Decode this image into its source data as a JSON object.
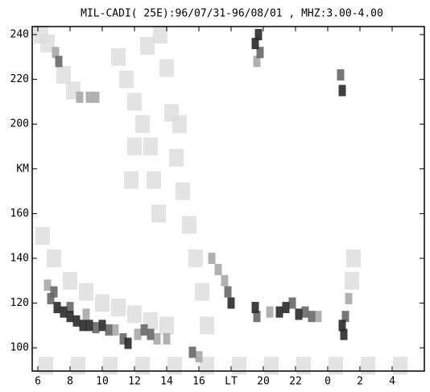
{
  "chart_data": {
    "type": "scatter",
    "title": "MIL-CADI( 25E):96/07/31-96/08/01 , MHZ:3.00-4.00",
    "xlim": [
      5.65,
      30
    ],
    "ylim": [
      89.6,
      243.6
    ],
    "xticks": [
      6,
      8,
      10,
      12,
      14,
      16,
      {
        "value": 18,
        "label": "LT"
      },
      20,
      22,
      {
        "value": 24,
        "label": "0"
      },
      {
        "value": 26,
        "label": "2"
      },
      {
        "value": 28,
        "label": "4"
      }
    ],
    "yticks": [
      100,
      120,
      140,
      160,
      {
        "value": 180,
        "label": "KM"
      },
      200,
      220,
      240
    ],
    "level_colors": [
      "#dcdcdc",
      "#a8a8a8",
      "#686868",
      "#2a2a2a"
    ],
    "x": [
      6.8,
      7.2,
      7.6,
      8,
      8.4,
      8.8,
      9.2,
      9.6,
      10,
      10.4,
      6.6,
      7,
      8,
      9,
      10.8,
      11.3,
      11.6,
      12.2,
      12.6,
      13,
      13.4,
      14,
      15.6,
      16,
      17.8,
      18,
      17.6,
      17.2,
      16.8,
      19.5,
      19.6,
      21,
      21.4,
      21.8,
      22.2,
      22.6,
      23,
      23.4,
      20.4,
      24.9,
      25,
      25.1,
      25.3,
      25.5,
      25.6,
      19.7,
      19.5,
      19.8,
      19.6,
      24.9,
      24.8,
      7.3,
      7.1,
      8.6,
      9.2,
      9.6,
      6.2,
      6.6,
      7.6,
      8.2,
      11,
      11.5,
      12,
      12.5,
      13,
      13.6,
      14,
      14.3,
      14.6,
      15,
      15.4,
      15.8,
      16.2,
      16.5,
      12,
      11.8,
      13.5,
      8,
      9,
      10,
      11,
      12,
      13,
      14,
      7,
      6.3,
      12.8,
      14.8,
      13.2,
      6.5,
      8.5,
      10.5,
      12.5,
      14.5,
      16.5,
      18.5,
      20.5,
      22.5,
      24.5,
      26.5,
      28.5
    ],
    "y": [
      122,
      118,
      116,
      114,
      112,
      110,
      110,
      109,
      110,
      108,
      128,
      125,
      118,
      115,
      108,
      104,
      102,
      106,
      108,
      106,
      104,
      104,
      98,
      96,
      125,
      120,
      130,
      135,
      140,
      118,
      114,
      116,
      118,
      120,
      115,
      116,
      114,
      114,
      116,
      110,
      106,
      114,
      122,
      130,
      140,
      240,
      236,
      232,
      228,
      215,
      222,
      228,
      232,
      212,
      212,
      212,
      240,
      236,
      222,
      215,
      230,
      220,
      210,
      200,
      190,
      240,
      225,
      205,
      185,
      170,
      155,
      140,
      125,
      110,
      190,
      175,
      160,
      130,
      125,
      120,
      118,
      115,
      112,
      110,
      140,
      150,
      235,
      200,
      175,
      92,
      92,
      92,
      92,
      92,
      92,
      92,
      92,
      92,
      92,
      92,
      92
    ],
    "levels": [
      3,
      4,
      4,
      4,
      4,
      4,
      4,
      3,
      4,
      3,
      2,
      3,
      3,
      2,
      2,
      3,
      4,
      2,
      3,
      3,
      2,
      2,
      3,
      2,
      3,
      4,
      2,
      2,
      2,
      4,
      3,
      4,
      4,
      3,
      4,
      3,
      3,
      2,
      2,
      4,
      4,
      3,
      2,
      1,
      1,
      4,
      4,
      3,
      2,
      4,
      3,
      3,
      2,
      2,
      2,
      2,
      1,
      1,
      1,
      1,
      1,
      1,
      1,
      1,
      1,
      1,
      1,
      1,
      1,
      1,
      1,
      1,
      1,
      1,
      1,
      1,
      1,
      1,
      1,
      1,
      1,
      1,
      1,
      1,
      1,
      1,
      1,
      1,
      1,
      1,
      1,
      1,
      1,
      1,
      1,
      1,
      1,
      1,
      1,
      1,
      1
    ]
  }
}
